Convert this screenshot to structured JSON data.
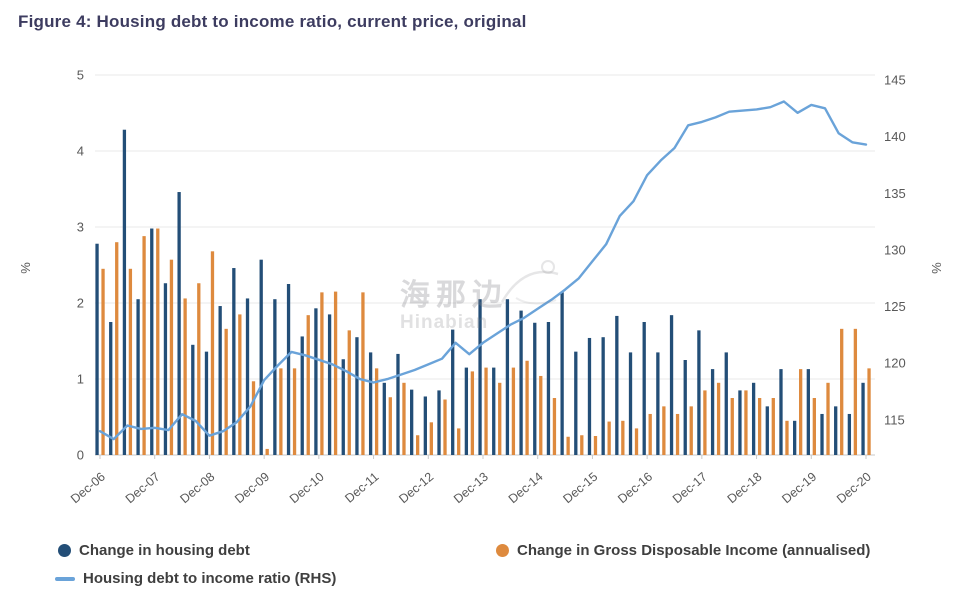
{
  "header": {
    "title": "Figure 4: Housing debt to income ratio, current price, original",
    "title_color": "#3d3c60"
  },
  "watermark": {
    "cjk": "海那边",
    "latin": "Hinabian"
  },
  "colors": {
    "bar_debt": "#234E77",
    "bar_gdi": "#DE8A3E",
    "line_ratio": "#6AA3D9",
    "grid": "#e9e9e9",
    "axis_line": "#c9c9c9",
    "tick_text": "#595959"
  },
  "chart_data": {
    "type": "bar+line",
    "title": "Figure 4: Housing debt to income ratio, current price, original",
    "x": [
      "Dec-06",
      "Mar-07",
      "Jun-07",
      "Sep-07",
      "Dec-07",
      "Mar-08",
      "Jun-08",
      "Sep-08",
      "Dec-08",
      "Mar-09",
      "Jun-09",
      "Sep-09",
      "Dec-09",
      "Mar-10",
      "Jun-10",
      "Sep-10",
      "Dec-10",
      "Mar-11",
      "Jun-11",
      "Sep-11",
      "Dec-11",
      "Mar-12",
      "Jun-12",
      "Sep-12",
      "Dec-12",
      "Mar-13",
      "Jun-13",
      "Sep-13",
      "Dec-13",
      "Mar-14",
      "Jun-14",
      "Sep-14",
      "Dec-14",
      "Mar-15",
      "Jun-15",
      "Sep-15",
      "Dec-15",
      "Mar-16",
      "Jun-16",
      "Sep-16",
      "Dec-16",
      "Mar-17",
      "Jun-17",
      "Sep-17",
      "Dec-17",
      "Mar-18",
      "Jun-18",
      "Sep-18",
      "Dec-18",
      "Mar-19",
      "Jun-19",
      "Sep-19",
      "Dec-19",
      "Mar-20",
      "Jun-20",
      "Sep-20",
      "Dec-20"
    ],
    "x_tick_every": 4,
    "series": [
      {
        "name": "Change in housing debt",
        "type": "bar",
        "axis": "left",
        "color": "#234E77",
        "values": [
          2.78,
          1.75,
          4.28,
          2.05,
          2.98,
          2.26,
          3.46,
          1.45,
          1.36,
          1.96,
          2.46,
          2.06,
          2.57,
          2.05,
          2.25,
          1.56,
          1.93,
          1.85,
          1.26,
          1.55,
          1.35,
          0.95,
          1.33,
          0.86,
          0.77,
          0.85,
          1.65,
          1.15,
          2.05,
          1.15,
          2.05,
          1.9,
          1.74,
          1.75,
          2.14,
          1.36,
          1.54,
          1.55,
          1.83,
          1.35,
          1.75,
          1.35,
          1.84,
          1.25,
          1.64,
          1.13,
          1.35,
          0.85,
          0.95,
          0.64,
          1.13,
          0.45,
          1.13,
          0.54,
          0.64,
          0.54,
          0.95
        ]
      },
      {
        "name": "Change in Gross Disposable Income (annualised)",
        "type": "bar",
        "axis": "left",
        "color": "#DE8A3E",
        "values": [
          2.45,
          2.8,
          2.45,
          2.88,
          2.98,
          2.57,
          2.06,
          2.26,
          2.68,
          1.66,
          1.85,
          0.97,
          0.08,
          1.14,
          1.14,
          1.84,
          2.14,
          2.15,
          1.64,
          2.14,
          1.14,
          0.76,
          0.95,
          0.26,
          0.43,
          0.73,
          0.35,
          1.1,
          1.15,
          0.95,
          1.15,
          1.24,
          1.04,
          0.75,
          0.24,
          0.26,
          0.25,
          0.44,
          0.45,
          0.35,
          0.54,
          0.64,
          0.54,
          0.64,
          0.85,
          0.95,
          0.75,
          0.85,
          0.75,
          0.75,
          0.45,
          1.13,
          0.75,
          0.95,
          1.66,
          1.66,
          1.14
        ]
      },
      {
        "name": "Housing debt to income ratio (RHS)",
        "type": "line",
        "axis": "right",
        "color": "#6AA3D9",
        "values": [
          114.0,
          113.3,
          114.5,
          114.2,
          114.3,
          114.1,
          115.5,
          114.9,
          113.6,
          114.0,
          114.8,
          116.2,
          118.5,
          119.8,
          121.0,
          120.7,
          120.3,
          119.9,
          119.3,
          118.6,
          118.3,
          118.6,
          119.0,
          119.4,
          119.9,
          120.4,
          121.8,
          120.8,
          121.8,
          122.6,
          123.4,
          124.0,
          124.8,
          125.6,
          126.5,
          127.5,
          129.0,
          130.5,
          133.0,
          134.3,
          136.6,
          137.9,
          139.0,
          141.0,
          141.3,
          141.7,
          142.2,
          142.3,
          142.4,
          142.6,
          143.1,
          142.1,
          142.8,
          142.5,
          140.3,
          139.5,
          139.3
        ]
      }
    ],
    "left_axis": {
      "label": "%",
      "min": 0,
      "max": 5,
      "ticks": [
        0,
        1,
        2,
        3,
        4,
        5
      ]
    },
    "right_axis": {
      "label": "%",
      "min": 111.9,
      "max": 145.44,
      "ticks": [
        115,
        120,
        125,
        130,
        135,
        140,
        145
      ]
    },
    "grid": true,
    "legend_position": "bottom"
  }
}
